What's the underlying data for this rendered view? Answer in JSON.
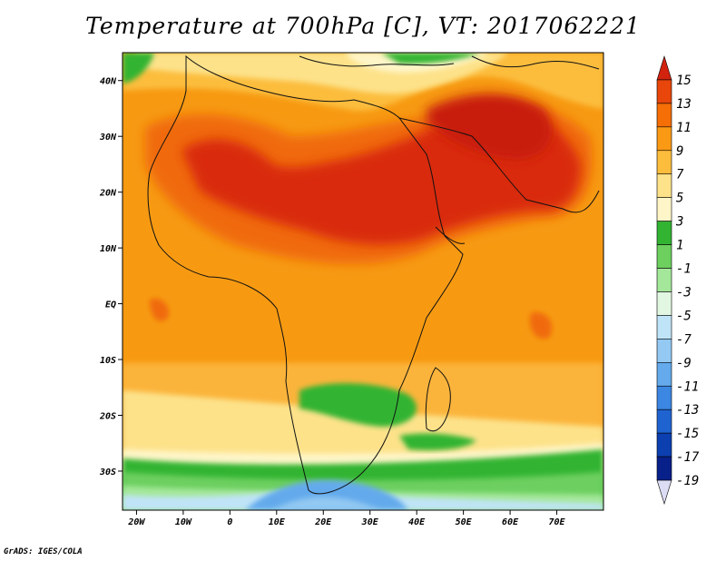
{
  "title": "Temperature at 700hPa [C], VT: 2017062221",
  "footer": "GrADS: IGES/COLA",
  "map": {
    "projection": "lat-lon",
    "lon_range": [
      -23,
      80
    ],
    "lat_range": [
      -37,
      45
    ],
    "lon_ticks": [
      "20W",
      "10W",
      "0",
      "10E",
      "20E",
      "30E",
      "40E",
      "50E",
      "60E",
      "70E"
    ],
    "lat_ticks": [
      "40N",
      "30N",
      "20N",
      "10N",
      "EQ",
      "10S",
      "20S",
      "30S"
    ],
    "lon_tick_values": [
      -20,
      -10,
      0,
      10,
      20,
      30,
      40,
      50,
      60,
      70
    ],
    "lat_tick_values": [
      40,
      30,
      20,
      10,
      0,
      -10,
      -20,
      -30
    ]
  },
  "colorbar": {
    "labels": [
      "15",
      "13",
      "11",
      "9",
      "7",
      "5",
      "3",
      "1",
      "-1",
      "-3",
      "-5",
      "-7",
      "-9",
      "-11",
      "-13",
      "-15",
      "-17",
      "-19"
    ],
    "colors": [
      "#d2230f",
      "#e8460b",
      "#f56e06",
      "#fa9a14",
      "#fcbd3d",
      "#fde28a",
      "#fef5c8",
      "#32b432",
      "#6ccf5e",
      "#a4e79a",
      "#e2f7e2",
      "#c0e4f7",
      "#93c9f2",
      "#64aaec",
      "#3b87e2",
      "#1f63d0",
      "#0c3fb0",
      "#08208a",
      "#dcdcf5"
    ]
  }
}
